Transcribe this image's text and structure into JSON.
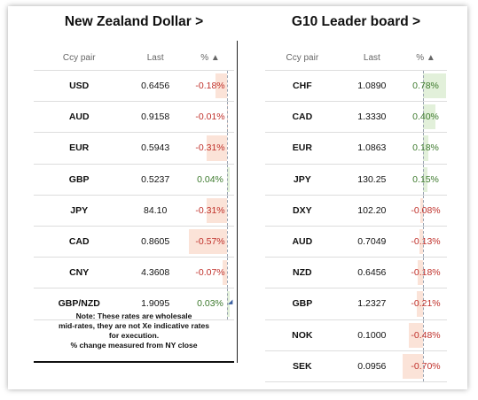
{
  "left_panel": {
    "title": "New Zealand Dollar >",
    "headers": {
      "pair": "Ccy pair",
      "last": "Last",
      "pct": "% ▲"
    },
    "rows": [
      {
        "pair": "USD",
        "last": "0.6456",
        "pct": "-0.18%",
        "value": -0.18
      },
      {
        "pair": "AUD",
        "last": "0.9158",
        "pct": "-0.01%",
        "value": -0.01
      },
      {
        "pair": "EUR",
        "last": "0.5943",
        "pct": "-0.31%",
        "value": -0.31
      },
      {
        "pair": "GBP",
        "last": "0.5237",
        "pct": "0.04%",
        "value": 0.04
      },
      {
        "pair": "JPY",
        "last": "84.10",
        "pct": "-0.31%",
        "value": -0.31
      },
      {
        "pair": "CAD",
        "last": "0.8605",
        "pct": "-0.57%",
        "value": -0.57
      },
      {
        "pair": "CNY",
        "last": "4.3608",
        "pct": "-0.07%",
        "value": -0.07
      },
      {
        "pair": "GBP/NZD",
        "last": "1.9095",
        "pct": "0.03%",
        "value": 0.03
      }
    ],
    "note": {
      "line1": "Note: These rates are wholesale",
      "line2": "mid-rates, they are not Xe indicative rates",
      "line3": "for execution.",
      "line4": "% change measured from NY close"
    }
  },
  "right_panel": {
    "title": "G10 Leader board >",
    "headers": {
      "pair": "Ccy pair",
      "last": "Last",
      "pct": "% ▲"
    },
    "rows": [
      {
        "pair": "CHF",
        "last": "1.0890",
        "pct": "0.78%",
        "value": 0.78
      },
      {
        "pair": "CAD",
        "last": "1.3330",
        "pct": "0.40%",
        "value": 0.4
      },
      {
        "pair": "EUR",
        "last": "1.0863",
        "pct": "0.18%",
        "value": 0.18
      },
      {
        "pair": "JPY",
        "last": "130.25",
        "pct": "0.15%",
        "value": 0.15
      },
      {
        "pair": "DXY",
        "last": "102.20",
        "pct": "-0.08%",
        "value": -0.08
      },
      {
        "pair": "AUD",
        "last": "0.7049",
        "pct": "-0.13%",
        "value": -0.13
      },
      {
        "pair": "NZD",
        "last": "0.6456",
        "pct": "-0.18%",
        "value": -0.18
      },
      {
        "pair": "GBP",
        "last": "1.2327",
        "pct": "-0.21%",
        "value": -0.21
      },
      {
        "pair": "NOK",
        "last": "0.1000",
        "pct": "-0.48%",
        "value": -0.48
      },
      {
        "pair": "SEK",
        "last": "0.0956",
        "pct": "-0.70%",
        "value": -0.7
      }
    ]
  },
  "colors": {
    "negative": "#c0312b",
    "positive": "#3d7a2d",
    "neg_bar": "#fbe3d8",
    "pos_bar": "#e2f0da"
  }
}
